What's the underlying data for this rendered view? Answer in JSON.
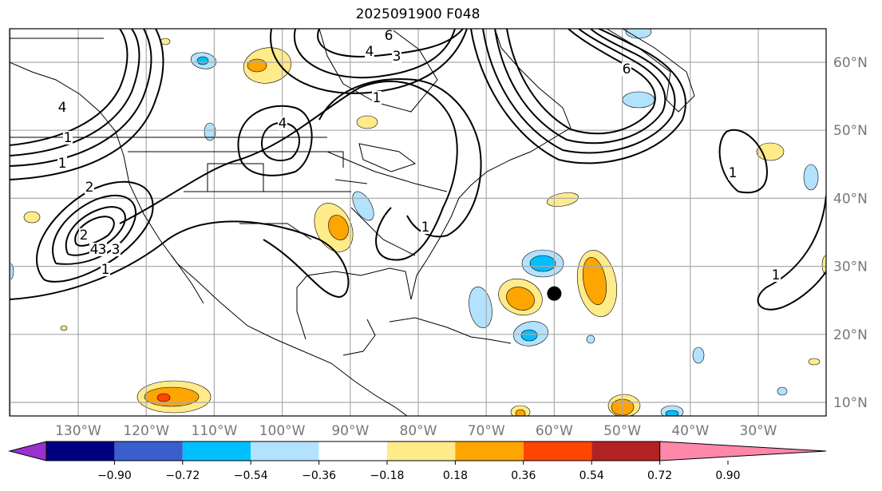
{
  "title": "2025091900 F048",
  "map": {
    "extent": {
      "lon": [
        -140,
        -20
      ],
      "lat": [
        8,
        65
      ]
    },
    "lon_ticks": [
      "130°W",
      "120°W",
      "110°W",
      "100°W",
      "90°W",
      "80°W",
      "70°W",
      "60°W",
      "50°W",
      "40°W",
      "30°W"
    ],
    "lat_ticks": [
      "60°N",
      "50°N",
      "40°N",
      "30°N",
      "20°N",
      "10°N"
    ],
    "marker": {
      "lon": -60,
      "lat": 26,
      "color": "#000000"
    },
    "contour_labels": [
      "1",
      "2",
      "3",
      "4",
      "3",
      "2",
      "1",
      "1",
      "4",
      "6",
      "4",
      "3",
      "1",
      "4",
      "6",
      "1",
      "1",
      "1"
    ]
  },
  "colorbar": {
    "colors": [
      "#9932CC",
      "#000080",
      "#3A5FCD",
      "#00BFFF",
      "#B3E2FF",
      "#FFFFFF",
      "#FFEB8A",
      "#FFA500",
      "#FF4500",
      "#B22222",
      "#FF88AA"
    ],
    "ticks": [
      "−0.90",
      "−0.72",
      "−0.54",
      "−0.36",
      "−0.18",
      "0.18",
      "0.36",
      "0.54",
      "0.72",
      "0.90"
    ]
  }
}
